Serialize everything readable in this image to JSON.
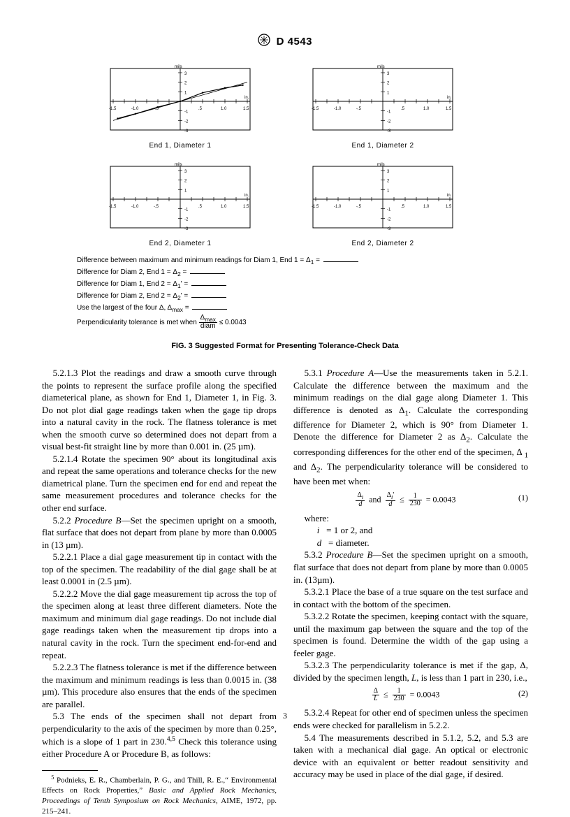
{
  "header": {
    "designation": "D 4543"
  },
  "figure": {
    "charts": [
      {
        "caption": "End 1, Diameter 1",
        "ylabel": "mils",
        "xunit": "in.",
        "xticks_left": [
          "1.5",
          "1.0",
          ".5"
        ],
        "xticks_right": [
          ".5",
          "1.0",
          "1.5"
        ],
        "yticks_pos": [
          "1",
          "2",
          "3"
        ],
        "yticks_neg": [
          "-1",
          "-2",
          "-3"
        ],
        "curve": [
          [
            -1.4,
            -1.8
          ],
          [
            -1.0,
            -1.3
          ],
          [
            -0.5,
            -0.6
          ],
          [
            0.0,
            0.0
          ],
          [
            0.5,
            0.9
          ],
          [
            1.0,
            1.4
          ],
          [
            1.4,
            1.7
          ]
        ],
        "best_fit": [
          [
            -1.5,
            -2.0
          ],
          [
            1.5,
            2.0
          ]
        ]
      },
      {
        "caption": "End 1, Diameter 2",
        "ylabel": "mils",
        "xunit": "in.",
        "xticks_left": [
          "1.5",
          "1.0",
          ".5"
        ],
        "xticks_right": [
          ".5",
          "1.0",
          "1.5"
        ],
        "yticks_pos": [
          "1",
          "2",
          "3"
        ],
        "yticks_neg": [
          "-1",
          "-2",
          "-3"
        ]
      },
      {
        "caption": "End 2, Diameter 1",
        "ylabel": "mils",
        "xunit": "in.",
        "xticks_left": [
          "1.5",
          "1.0",
          ".5"
        ],
        "xticks_right": [
          ".5",
          "1.0",
          "1.5"
        ],
        "yticks_pos": [
          "1",
          "2",
          "3"
        ],
        "yticks_neg": [
          "-1",
          "-2",
          "-3"
        ]
      },
      {
        "caption": "End 2, Diameter 2",
        "ylabel": "mils",
        "xunit": "in.",
        "xticks_left": [
          "1.5",
          "1.0",
          ".5"
        ],
        "xticks_right": [
          ".5",
          "1.0",
          "1.5"
        ],
        "yticks_pos": [
          "1",
          "2",
          "3"
        ],
        "yticks_neg": [
          "-1",
          "-2",
          "-3"
        ]
      }
    ],
    "notes": {
      "l1": "Difference between maximum and minimum readings for Diam 1, End 1 = Δ",
      "l1sub": "1",
      "l2": "Difference for Diam 2, End 1 = Δ",
      "l2sub": "2",
      "l3": "Difference for Diam 1, End 2 = Δ",
      "l3sub": "1",
      "l3sup": "'",
      "l4": "Difference for Diam 2, End 2 = Δ",
      "l4sub": "2",
      "l4sup": "'",
      "l5": "Use the largest of the four Δ, Δ",
      "l5sub": "max",
      "l6a": "Perpendicularity tolerance is met when ",
      "l6frac_num": "Δ",
      "l6frac_numsub": "max",
      "l6frac_den": "diam",
      "l6b": " ≤ 0.0043"
    },
    "title": "FIG. 3 Suggested Format for Presenting Tolerance-Check Data"
  },
  "body": {
    "p1": "5.2.1.3 Plot the readings and draw a smooth curve through the points to represent the surface profile along the specified diameterical plane, as shown for End 1, Diameter 1, in Fig. 3. Do not plot dial gage readings taken when the gage tip drops into a natural cavity in the rock. The flatness tolerance is met when the smooth curve so determined does not depart from a visual best-fit straight line by more than 0.001 in. (25 µm).",
    "p2": "5.2.1.4 Rotate the specimen 90° about its longitudinal axis and repeat the same operations and tolerance checks for the new diametrical plane. Turn the specimen end for end and repeat the same measurement procedures and tolerance checks for the other end surface.",
    "p3a": "5.2.2 ",
    "p3b": "Procedure B",
    "p3c": "—Set the specimen upright on a smooth, flat surface that does not depart from plane by more than 0.0005 in (13 µm).",
    "p4": "5.2.2.1 Place a dial gage measurement tip in contact with the top of the specimen. The readability of the dial gage shall be at least 0.0001 in (2.5 µm).",
    "p5": "5.2.2.2 Move the dial gage measurement tip across the top of the specimen along at least three different diameters. Note the maximum and minimum dial gage readings. Do not include dial gage readings taken when the measurement tip drops into a natural cavity in the rock. Turn the speciment end-for-end and repeat.",
    "p6": "5.2.2.3 The flatness tolerance is met if the difference between the maximum and minimum readings is less than 0.0015 in. (38 µm). This procedure also ensures that the ends of the specimen are parallel.",
    "p7a": "5.3 The ends of the specimen shall not depart from perpendicularity to the axis of the specimen by more than 0.25°, which is a slope of 1 part in 230.",
    "p7b": " Check this tolerance using either Procedure A or Procedure B, as follows:",
    "p7sup": "4,5",
    "p8a": "5.3.1 ",
    "p8b": "Procedure A",
    "p8c": "—Use the measurements taken in 5.2.1. Calculate the difference between the maximum and the minimum readings on the dial gage along Diameter 1. This difference is denoted as Δ",
    "p8d": ". Calculate the corresponding difference for Diameter 2, which is 90° from Diameter 1. Denote the difference for Diameter 2 as Δ",
    "p8e": ". Calculate the corresponding differences for the other end of the specimen, Δ ",
    "p8f": " and Δ",
    "p8g": ". The perpendicularity tolerance will be considered to have been met when:",
    "eq1num": "(1)",
    "where": "where:",
    "wd1a": "i",
    "wd1b": " = 1 or 2, and",
    "wd2a": "d",
    "wd2b": " = diameter.",
    "p9a": "5.3.2 ",
    "p9b": "Procedure B",
    "p9c": "—Set the specimen upright on a smooth, flat surface that does not depart from plane by more than 0.0005 in. (13µm).",
    "p10": "5.3.2.1 Place the base of a true square on the test surface and in contact with the bottom of the specimen.",
    "p11": "5.3.2.2 Rotate the specimen, keeping contact with the square, until the maximum gap between the square and the top of the specimen is found. Determine the width of the gap using a feeler gage.",
    "p12a": "5.3.2.3 The perpendicularity tolerance is met if the gap, Δ, divided by the specimen length, ",
    "p12b": "L",
    "p12c": ", is less than 1 part in 230, i.e.,",
    "eq2num": "(2)",
    "p13": "5.3.2.4 Repeat for other end of specimen unless the specimen ends were checked for parallelism in 5.2.2.",
    "p14": "5.4 The measurements described in 5.1.2, 5.2, and 5.3 are taken with a mechanical dial gage. An optical or electronic device with an equivalent or better readout sensitivity and accuracy may be used in place of the dial gage, if desired."
  },
  "footnote": {
    "num": "5",
    "text": " Podnieks, E. R., Chamberlain, P. G., and Thill, R. E.,“ Environmental Effects on Rock Properties,” ",
    "ital": "Basic and Applied Rock Mechanics, Proceedings of Tenth Symposium on Rock Mechanics",
    "rest": ", AIME, 1972, pp. 215–241."
  },
  "pagenum": "3",
  "style": {
    "axis_color": "#000",
    "grid_color": "#000",
    "curve_color": "#000"
  }
}
